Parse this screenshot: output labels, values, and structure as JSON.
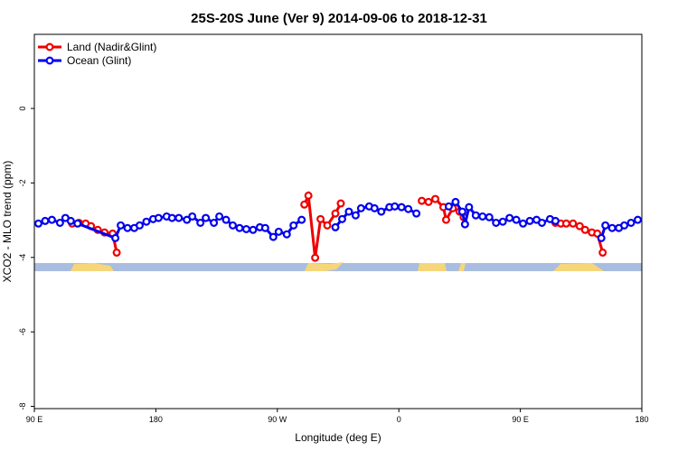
{
  "chart_data": {
    "type": "line",
    "title": "25S-20S June (Ver 9)   2014-09-06 to 2018-12-31",
    "x_label": "Longitude (deg E)",
    "y_label": "XCO2 - MLO trend (ppm)",
    "xlim": [
      90,
      540
    ],
    "ylim": [
      -8.06,
      1.99
    ],
    "xticks": [
      {
        "value": 90,
        "label": "90 E"
      },
      180,
      {
        "value": 270,
        "label": "90 W"
      },
      {
        "value": 360,
        "label": "0"
      },
      {
        "value": 450,
        "label": "90 E"
      },
      {
        "value": 540,
        "label": "180"
      }
    ],
    "yticks": [
      -8,
      -6,
      -4,
      -2,
      0
    ],
    "legend": "top-left",
    "series": [
      {
        "name": "Land (Nadir&Glint)",
        "color": "#ee0000",
        "x": [
          118,
          123,
          128,
          132,
          137,
          142,
          148,
          151,
          250,
          290,
          293,
          298,
          302,
          307,
          313,
          317,
          340,
          377,
          382,
          387,
          393,
          395,
          400,
          405,
          408,
          440,
          476,
          480,
          484,
          489,
          494,
          498,
          503,
          507,
          511
        ],
        "values": [
          -3.09,
          -3.07,
          -3.09,
          -3.16,
          -3.26,
          -3.33,
          -3.36,
          -3.87,
          null,
          -2.58,
          -2.34,
          -4.01,
          -2.97,
          -3.14,
          -2.82,
          -2.55,
          null,
          -2.48,
          -2.51,
          -2.43,
          -2.65,
          -2.99,
          -2.68,
          -2.77,
          -2.92,
          null,
          -3.07,
          -3.09,
          -3.09,
          -3.09,
          -3.16,
          -3.26,
          -3.33,
          -3.36,
          -3.87
        ]
      },
      {
        "name": "Ocean (Glint)",
        "color": "#0000ee",
        "x": [
          93,
          98,
          103,
          109,
          113,
          117,
          122,
          150,
          154,
          159,
          164,
          168,
          173,
          178,
          182,
          188,
          192,
          197,
          203,
          207,
          213,
          217,
          223,
          227,
          232,
          237,
          242,
          247,
          252,
          257,
          261,
          267,
          271,
          277,
          282,
          288,
          300,
          313,
          318,
          323,
          328,
          332,
          338,
          342,
          347,
          353,
          357,
          362,
          367,
          373,
          385,
          397,
          402,
          407,
          409,
          412,
          417,
          422,
          427,
          432,
          437,
          442,
          447,
          452,
          457,
          462,
          466,
          472,
          476,
          490,
          510,
          513,
          518,
          523,
          527,
          532,
          537
        ],
        "values": [
          -3.09,
          -3.02,
          -2.99,
          -3.07,
          -2.94,
          -3.02,
          -3.09,
          -3.48,
          -3.14,
          -3.21,
          -3.21,
          -3.14,
          -3.04,
          -2.97,
          -2.94,
          -2.9,
          -2.94,
          -2.94,
          -2.99,
          -2.9,
          -3.07,
          -2.94,
          -3.07,
          -2.9,
          -2.99,
          -3.14,
          -3.21,
          -3.24,
          -3.26,
          -3.19,
          -3.21,
          -3.45,
          -3.31,
          -3.38,
          -3.14,
          -2.99,
          null,
          -3.19,
          -2.97,
          -2.77,
          -2.87,
          -2.68,
          -2.63,
          -2.68,
          -2.77,
          -2.65,
          -2.63,
          -2.65,
          -2.7,
          -2.82,
          null,
          -2.63,
          -2.51,
          -2.77,
          -3.11,
          -2.65,
          -2.87,
          -2.9,
          -2.92,
          -3.07,
          -3.04,
          -2.94,
          -2.99,
          -3.09,
          -3.02,
          -2.99,
          -3.07,
          -2.97,
          -3.02,
          null,
          -3.48,
          -3.14,
          -3.21,
          -3.21,
          -3.14,
          -3.07,
          -2.99
        ]
      }
    ]
  }
}
